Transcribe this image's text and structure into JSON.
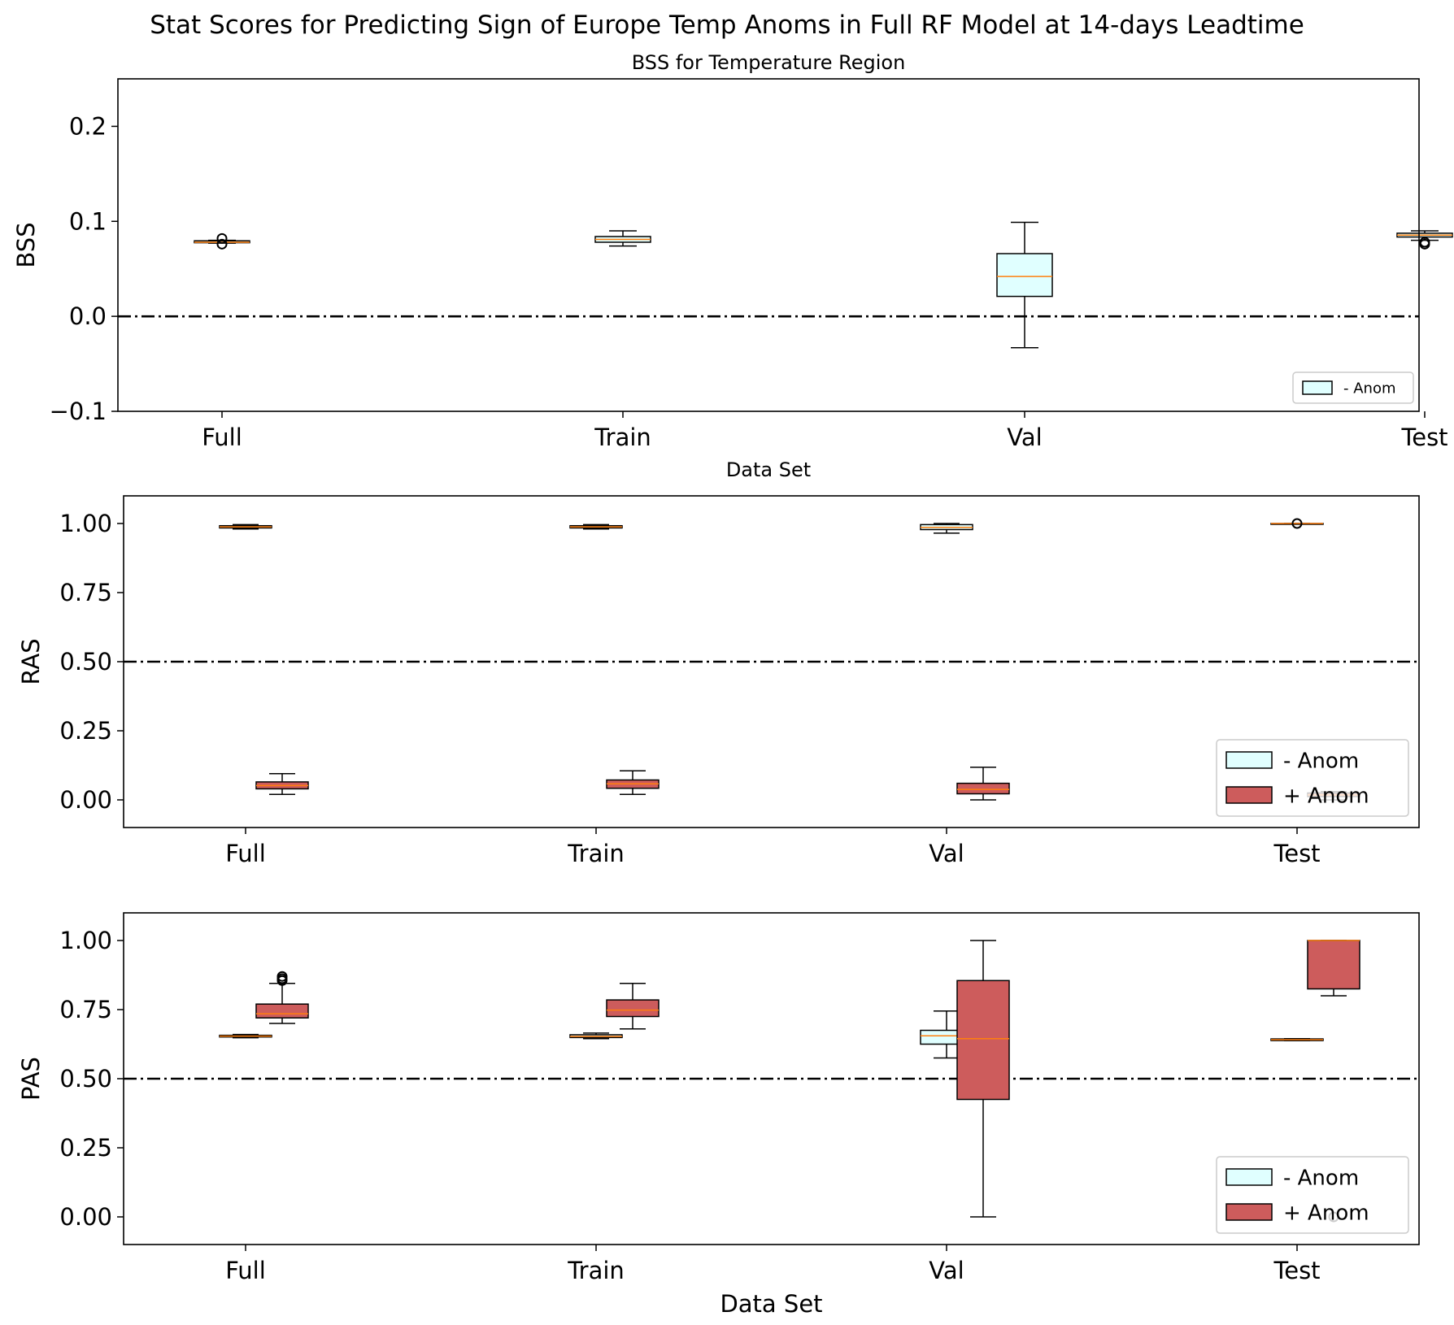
{
  "figure": {
    "suptitle": "Stat Scores for Predicting Sign of Europe Temp Anoms in Full RF Model at 14-days Leadtime"
  },
  "colors": {
    "neg_anom_fill": "#e0ffff",
    "pos_anom_fill": "#cd5c5c",
    "median_line": "#ff7f0e",
    "reference_line": "#000000"
  },
  "chart_data": [
    {
      "id": "bss",
      "type": "boxplot",
      "title": "BSS for Temperature Region",
      "xlabel": "Data Set",
      "ylabel": "BSS",
      "ylim": [
        -0.1,
        0.25
      ],
      "yticks": [
        -0.1,
        0.0,
        0.1,
        0.2
      ],
      "ytick_labels": [
        "−0.1",
        "0.0",
        "0.1",
        "0.2"
      ],
      "categories": [
        "Full",
        "Train",
        "Val",
        "Test"
      ],
      "reference_line": 0.0,
      "legend": {
        "placement": "lower-right",
        "entries": [
          "- Anom"
        ]
      },
      "series": [
        {
          "name": "- Anom",
          "fill": "#e0ffff",
          "boxes": [
            {
              "category": "Full",
              "whislo": 0.077,
              "q1": 0.0775,
              "med": 0.078,
              "q3": 0.0795,
              "whishi": 0.08,
              "fliers": [
                0.076,
                0.082
              ]
            },
            {
              "category": "Train",
              "whislo": 0.074,
              "q1": 0.078,
              "med": 0.081,
              "q3": 0.084,
              "whishi": 0.09,
              "fliers": []
            },
            {
              "category": "Val",
              "whislo": -0.033,
              "q1": 0.021,
              "med": 0.042,
              "q3": 0.066,
              "whishi": 0.099,
              "fliers": []
            },
            {
              "category": "Test",
              "whislo": 0.08,
              "q1": 0.0835,
              "med": 0.0855,
              "q3": 0.0875,
              "whishi": 0.09,
              "fliers": [
                0.076,
                0.078
              ]
            }
          ]
        }
      ]
    },
    {
      "id": "ras",
      "type": "boxplot",
      "title": "",
      "xlabel": "",
      "ylabel": "RAS",
      "ylim": [
        -0.1,
        1.1
      ],
      "yticks": [
        0.0,
        0.25,
        0.5,
        0.75,
        1.0
      ],
      "ytick_labels": [
        "0.00",
        "0.25",
        "0.50",
        "0.75",
        "1.00"
      ],
      "categories": [
        "Full",
        "Train",
        "Val",
        "Test"
      ],
      "reference_line": 0.5,
      "legend": {
        "placement": "lower-right",
        "entries": [
          "- Anom",
          "+ Anom"
        ]
      },
      "series": [
        {
          "name": "- Anom",
          "fill": "#e0ffff",
          "boxes": [
            {
              "category": "Full",
              "whislo": 0.98,
              "q1": 0.984,
              "med": 0.988,
              "q3": 0.992,
              "whishi": 0.996,
              "fliers": []
            },
            {
              "category": "Train",
              "whislo": 0.98,
              "q1": 0.984,
              "med": 0.988,
              "q3": 0.992,
              "whishi": 0.996,
              "fliers": []
            },
            {
              "category": "Val",
              "whislo": 0.965,
              "q1": 0.978,
              "med": 0.986,
              "q3": 0.996,
              "whishi": 1.0,
              "fliers": []
            },
            {
              "category": "Test",
              "whislo": 1.0,
              "q1": 1.0,
              "med": 1.0,
              "q3": 1.0,
              "whishi": 1.0,
              "fliers": [
                1.0
              ]
            }
          ]
        },
        {
          "name": "+ Anom",
          "fill": "#cd5c5c",
          "boxes": [
            {
              "category": "Full",
              "whislo": 0.02,
              "q1": 0.04,
              "med": 0.052,
              "q3": 0.065,
              "whishi": 0.095,
              "fliers": []
            },
            {
              "category": "Train",
              "whislo": 0.02,
              "q1": 0.042,
              "med": 0.058,
              "q3": 0.072,
              "whishi": 0.105,
              "fliers": []
            },
            {
              "category": "Val",
              "whislo": 0.0,
              "q1": 0.022,
              "med": 0.038,
              "q3": 0.06,
              "whishi": 0.118,
              "fliers": []
            },
            {
              "category": "Test",
              "whislo": 0.0,
              "q1": 0.012,
              "med": 0.018,
              "q3": 0.025,
              "whishi": 0.03,
              "fliers": []
            }
          ]
        }
      ]
    },
    {
      "id": "pas",
      "type": "boxplot",
      "title": "",
      "xlabel": "Data Set",
      "ylabel": "PAS",
      "ylim": [
        -0.1,
        1.1
      ],
      "yticks": [
        0.0,
        0.25,
        0.5,
        0.75,
        1.0
      ],
      "ytick_labels": [
        "0.00",
        "0.25",
        "0.50",
        "0.75",
        "1.00"
      ],
      "categories": [
        "Full",
        "Train",
        "Val",
        "Test"
      ],
      "reference_line": 0.5,
      "legend": {
        "placement": "lower-right",
        "entries": [
          "- Anom",
          "+ Anom"
        ]
      },
      "series": [
        {
          "name": "- Anom",
          "fill": "#e0ffff",
          "boxes": [
            {
              "category": "Full",
              "whislo": 0.648,
              "q1": 0.651,
              "med": 0.654,
              "q3": 0.657,
              "whishi": 0.66,
              "fliers": []
            },
            {
              "category": "Train",
              "whislo": 0.645,
              "q1": 0.649,
              "med": 0.653,
              "q3": 0.659,
              "whishi": 0.665,
              "fliers": []
            },
            {
              "category": "Val",
              "whislo": 0.575,
              "q1": 0.625,
              "med": 0.655,
              "q3": 0.675,
              "whishi": 0.745,
              "fliers": []
            },
            {
              "category": "Test",
              "whislo": 0.638,
              "q1": 0.638,
              "med": 0.641,
              "q3": 0.644,
              "whishi": 0.645,
              "fliers": []
            }
          ]
        },
        {
          "name": "+ Anom",
          "fill": "#cd5c5c",
          "boxes": [
            {
              "category": "Full",
              "whislo": 0.7,
              "q1": 0.72,
              "med": 0.735,
              "q3": 0.77,
              "whishi": 0.845,
              "fliers": [
                0.855,
                0.862,
                0.87
              ]
            },
            {
              "category": "Train",
              "whislo": 0.68,
              "q1": 0.725,
              "med": 0.748,
              "q3": 0.785,
              "whishi": 0.845,
              "fliers": []
            },
            {
              "category": "Val",
              "whislo": 0.0,
              "q1": 0.425,
              "med": 0.645,
              "q3": 0.855,
              "whishi": 1.0,
              "fliers": []
            },
            {
              "category": "Test",
              "whislo": 0.8,
              "q1": 0.825,
              "med": 1.0,
              "q3": 1.0,
              "whishi": 1.0,
              "fliers": [
                0.0
              ]
            }
          ]
        }
      ]
    }
  ]
}
